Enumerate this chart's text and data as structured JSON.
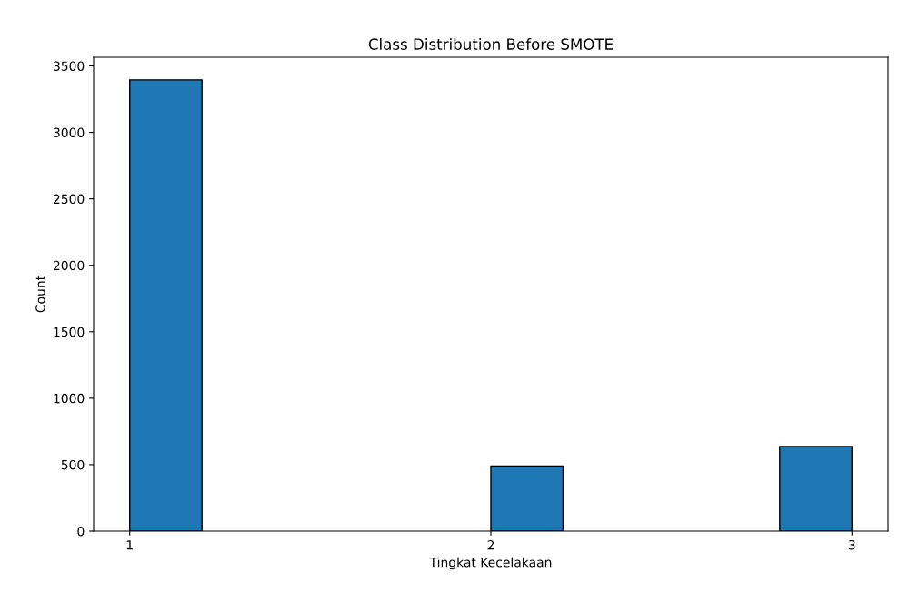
{
  "chart_data": {
    "type": "histogram",
    "title": "Class Distribution Before SMOTE",
    "xlabel": "Tingkat Kecelakaan",
    "ylabel": "Count",
    "bins": [
      1,
      1.2,
      1.4,
      1.6,
      1.8,
      2,
      2.2,
      2.4,
      2.6,
      2.8,
      3
    ],
    "values": [
      3395,
      0,
      0,
      0,
      0,
      490,
      0,
      0,
      0,
      637
    ],
    "color": "#1f77b4",
    "xlim": [
      0.9,
      3.1
    ],
    "xticks": [
      1,
      2,
      3
    ],
    "ylim": [
      0,
      3565
    ],
    "yticks": [
      0,
      500,
      1000,
      1500,
      2000,
      2500,
      3000,
      3500
    ]
  }
}
